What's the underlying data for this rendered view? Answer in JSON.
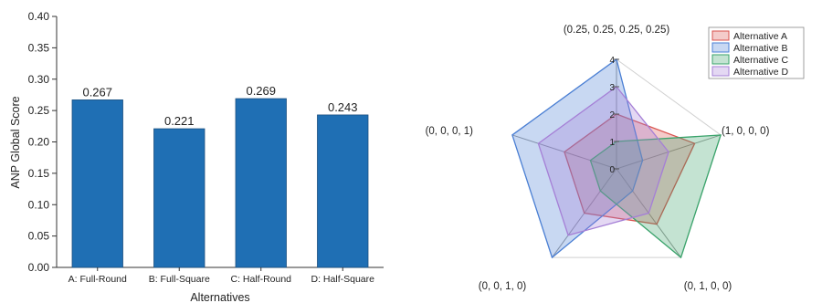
{
  "chart_data": [
    {
      "type": "bar",
      "categories": [
        "A: Full-Round",
        "B: Full-Square",
        "C: Half-Round",
        "D: Half-Square"
      ],
      "values": [
        0.267,
        0.221,
        0.269,
        0.243
      ],
      "data_labels": [
        "0.267",
        "0.221",
        "0.269",
        "0.243"
      ],
      "title": "",
      "xlabel": "Alternatives",
      "ylabel": "ANP Global Score",
      "ylim": [
        0,
        0.4
      ],
      "yticks": [
        0.0,
        0.05,
        0.1,
        0.15,
        0.2,
        0.25,
        0.3,
        0.35,
        0.4
      ],
      "ytick_labels": [
        "0.00",
        "0.05",
        "0.10",
        "0.15",
        "0.20",
        "0.25",
        "0.30",
        "0.35",
        "0.40"
      ],
      "bar_color": "#1f6fb4",
      "grid": false
    },
    {
      "type": "radar",
      "axes": [
        "(0.25, 0.25, 0.25, 0.25)",
        "(1, 0, 0, 0)",
        "(0, 1, 0, 0)",
        "(0, 0, 1, 0)",
        "(0, 0, 0, 1)"
      ],
      "rlim": [
        0,
        4
      ],
      "rticks": [
        0,
        1,
        2,
        3,
        4
      ],
      "rtick_labels": [
        "0",
        "1",
        "2",
        "3",
        "4"
      ],
      "series": [
        {
          "name": "Alternative A",
          "values": [
            2,
            3,
            2.5,
            2,
            2
          ],
          "color": "#d9534f"
        },
        {
          "name": "Alternative B",
          "values": [
            4,
            1,
            1,
            4,
            4
          ],
          "color": "#4a7fd4"
        },
        {
          "name": "Alternative C",
          "values": [
            1,
            4,
            4,
            1,
            1
          ],
          "color": "#3aa36b"
        },
        {
          "name": "Alternative D",
          "values": [
            3,
            2,
            2,
            3,
            3
          ],
          "color": "#a57fd6"
        }
      ],
      "legend": "top-right",
      "grid": true
    }
  ]
}
